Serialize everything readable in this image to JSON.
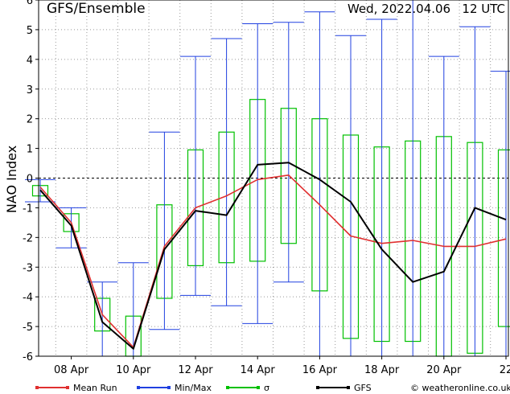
{
  "chart_data": {
    "type": "line",
    "title": "GFS/Ensemble",
    "run_label": "Wed, 2022.04.06   12 UTC",
    "ylabel": "NAO Index",
    "ylim": [
      -6,
      6
    ],
    "yticks": [
      "-6",
      "-5",
      "-4",
      "-3",
      "-2",
      "-1",
      "0",
      "1",
      "2",
      "3",
      "4",
      "5",
      "6"
    ],
    "xlim_days": [
      0,
      15.2
    ],
    "xticks": [
      {
        "day": 1,
        "label": "08 Apr"
      },
      {
        "day": 3,
        "label": "10 Apr"
      },
      {
        "day": 5,
        "label": "12 Apr"
      },
      {
        "day": 7,
        "label": "14 Apr"
      },
      {
        "day": 9,
        "label": "16 Apr"
      },
      {
        "day": 11,
        "label": "18 Apr"
      },
      {
        "day": 13,
        "label": "20 Apr"
      },
      {
        "day": 15,
        "label": "22"
      }
    ],
    "x": [
      0,
      0.5,
      1,
      1.5,
      2,
      2.5,
      3,
      3.5,
      4,
      4.5,
      5,
      5.5,
      6,
      6.5,
      7,
      7.5,
      8,
      8.5,
      9,
      9.5,
      10,
      10.5,
      11,
      11.5,
      12,
      12.5,
      13,
      13.5,
      14,
      14.5,
      15,
      15.5
    ],
    "series": [
      {
        "name": "Mean Run",
        "color": "#e03030",
        "values": [
          -0.3,
          null,
          -1.5,
          null,
          -4.6,
          null,
          -5.7,
          null,
          -2.3,
          null,
          -1.0,
          null,
          -0.6,
          null,
          -0.05,
          null,
          0.1,
          null,
          -0.9,
          null,
          -1.95,
          null,
          -2.2,
          null,
          -2.1,
          null,
          -2.3,
          null,
          -2.3,
          null,
          -2.05,
          null
        ]
      },
      {
        "name": "GFS",
        "color": "#000000",
        "values": [
          -0.4,
          null,
          -1.6,
          null,
          -4.85,
          null,
          -5.75,
          null,
          -2.4,
          null,
          -1.1,
          null,
          -1.25,
          null,
          0.45,
          null,
          0.52,
          null,
          -0.05,
          null,
          -0.8,
          null,
          -2.4,
          null,
          -3.5,
          null,
          -3.15,
          null,
          -1.0,
          null,
          -1.4,
          null
        ]
      }
    ],
    "min_max": [
      {
        "day": 0,
        "min": -0.8,
        "max": -0.05
      },
      {
        "day": 1,
        "min": -2.35,
        "max": -1.0
      },
      {
        "day": 2,
        "min": -6.0,
        "max": -3.5
      },
      {
        "day": 3,
        "min": -6.0,
        "max": -2.85
      },
      {
        "day": 4,
        "min": -5.1,
        "max": 1.55
      },
      {
        "day": 5,
        "min": -3.95,
        "max": 4.1
      },
      {
        "day": 6,
        "min": -4.3,
        "max": 4.7
      },
      {
        "day": 7,
        "min": -4.9,
        "max": 5.2
      },
      {
        "day": 8,
        "min": -3.5,
        "max": 5.25
      },
      {
        "day": 9,
        "min": -6.0,
        "max": 5.6
      },
      {
        "day": 10,
        "min": -6.0,
        "max": 4.8
      },
      {
        "day": 11,
        "min": -6.0,
        "max": 5.35
      },
      {
        "day": 12,
        "min": -6.0,
        "max": 6.0
      },
      {
        "day": 13,
        "min": -6.0,
        "max": 4.1
      },
      {
        "day": 14,
        "min": -6.0,
        "max": 5.1
      },
      {
        "day": 15,
        "min": -6.0,
        "max": 3.6
      }
    ],
    "sigma": [
      {
        "day": 0,
        "low": -0.6,
        "high": -0.25
      },
      {
        "day": 1,
        "low": -1.8,
        "high": -1.2
      },
      {
        "day": 2,
        "low": -5.15,
        "high": -4.05
      },
      {
        "day": 3,
        "low": -6.0,
        "high": -4.65
      },
      {
        "day": 4,
        "low": -4.05,
        "high": -0.9
      },
      {
        "day": 5,
        "low": -2.95,
        "high": 0.95
      },
      {
        "day": 6,
        "low": -2.85,
        "high": 1.55
      },
      {
        "day": 7,
        "low": -2.8,
        "high": 2.65
      },
      {
        "day": 8,
        "low": -2.2,
        "high": 2.35
      },
      {
        "day": 9,
        "low": -3.8,
        "high": 2.0
      },
      {
        "day": 10,
        "low": -5.4,
        "high": 1.45
      },
      {
        "day": 11,
        "low": -5.5,
        "high": 1.05
      },
      {
        "day": 12,
        "low": -5.5,
        "high": 1.25
      },
      {
        "day": 13,
        "low": -6.0,
        "high": 1.4
      },
      {
        "day": 14,
        "low": -5.9,
        "high": 1.2
      },
      {
        "day": 15,
        "low": -5.0,
        "high": 0.95
      }
    ],
    "legend": [
      {
        "label": "Mean Run",
        "color": "#e03030"
      },
      {
        "label": "Min/Max",
        "color": "#2040e0"
      },
      {
        "label": "σ",
        "color": "#00c000"
      },
      {
        "label": "GFS",
        "color": "#000000"
      },
      {
        "label": "© weatheronline.co.uk",
        "color": "#000000"
      }
    ],
    "grid": true,
    "legend_position": "bottom"
  }
}
